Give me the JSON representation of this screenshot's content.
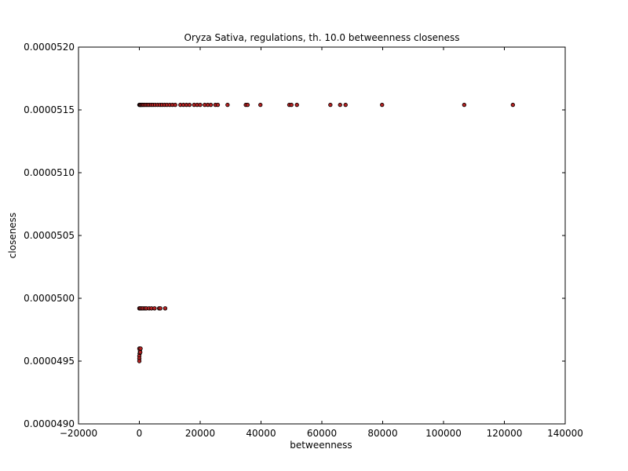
{
  "chart_data": {
    "type": "scatter",
    "title": "Oryza Sativa, regulations, th. 10.0 betweenness closeness",
    "xlabel": "betweenness",
    "ylabel": "closeness",
    "xlim": [
      -20000,
      140000
    ],
    "ylim": [
      4.9e-05,
      5.2e-05
    ],
    "grid": false,
    "x_ticks": [
      -20000,
      0,
      20000,
      40000,
      60000,
      80000,
      100000,
      120000,
      140000
    ],
    "x_tick_labels": [
      "−20000",
      "0",
      "20000",
      "40000",
      "60000",
      "80000",
      "100000",
      "120000",
      "140000"
    ],
    "y_ticks": [
      4.9e-05,
      4.95e-05,
      5e-05,
      5.05e-05,
      5.1e-05,
      5.15e-05,
      5.2e-05
    ],
    "y_tick_labels": [
      "0.0000490",
      "0.0000495",
      "0.0000500",
      "0.0000505",
      "0.0000510",
      "0.0000515",
      "0.0000520"
    ],
    "marker_face_color": "#b22222",
    "marker_edge_color": "#000000",
    "series": [
      {
        "points": [
          {
            "x": 0,
            "y": 5.154e-05
          },
          {
            "x": 200,
            "y": 5.154e-05
          },
          {
            "x": 400,
            "y": 5.154e-05
          },
          {
            "x": 700,
            "y": 5.154e-05
          },
          {
            "x": 1000,
            "y": 5.154e-05
          },
          {
            "x": 1400,
            "y": 5.154e-05
          },
          {
            "x": 1800,
            "y": 5.154e-05
          },
          {
            "x": 2300,
            "y": 5.154e-05
          },
          {
            "x": 2800,
            "y": 5.154e-05
          },
          {
            "x": 3300,
            "y": 5.154e-05
          },
          {
            "x": 3900,
            "y": 5.154e-05
          },
          {
            "x": 4500,
            "y": 5.154e-05
          },
          {
            "x": 5200,
            "y": 5.154e-05
          },
          {
            "x": 6000,
            "y": 5.154e-05
          },
          {
            "x": 6800,
            "y": 5.154e-05
          },
          {
            "x": 7500,
            "y": 5.154e-05
          },
          {
            "x": 8300,
            "y": 5.154e-05
          },
          {
            "x": 9100,
            "y": 5.154e-05
          },
          {
            "x": 10000,
            "y": 5.154e-05
          },
          {
            "x": 10900,
            "y": 5.154e-05
          },
          {
            "x": 11800,
            "y": 5.154e-05
          },
          {
            "x": 13500,
            "y": 5.154e-05
          },
          {
            "x": 14500,
            "y": 5.154e-05
          },
          {
            "x": 15500,
            "y": 5.154e-05
          },
          {
            "x": 16500,
            "y": 5.154e-05
          },
          {
            "x": 18000,
            "y": 5.154e-05
          },
          {
            "x": 19000,
            "y": 5.154e-05
          },
          {
            "x": 20000,
            "y": 5.154e-05
          },
          {
            "x": 21500,
            "y": 5.154e-05
          },
          {
            "x": 22500,
            "y": 5.154e-05
          },
          {
            "x": 23500,
            "y": 5.154e-05
          },
          {
            "x": 25000,
            "y": 5.154e-05
          },
          {
            "x": 25800,
            "y": 5.154e-05
          },
          {
            "x": 29000,
            "y": 5.154e-05
          },
          {
            "x": 35000,
            "y": 5.154e-05
          },
          {
            "x": 35600,
            "y": 5.154e-05
          },
          {
            "x": 39800,
            "y": 5.154e-05
          },
          {
            "x": 49300,
            "y": 5.154e-05
          },
          {
            "x": 50000,
            "y": 5.154e-05
          },
          {
            "x": 51800,
            "y": 5.154e-05
          },
          {
            "x": 62800,
            "y": 5.154e-05
          },
          {
            "x": 66000,
            "y": 5.154e-05
          },
          {
            "x": 67800,
            "y": 5.154e-05
          },
          {
            "x": 79800,
            "y": 5.154e-05
          },
          {
            "x": 106800,
            "y": 5.154e-05
          },
          {
            "x": 122800,
            "y": 5.154e-05
          },
          {
            "x": 0,
            "y": 4.992e-05
          },
          {
            "x": 300,
            "y": 4.992e-05
          },
          {
            "x": 700,
            "y": 4.992e-05
          },
          {
            "x": 1200,
            "y": 4.992e-05
          },
          {
            "x": 1800,
            "y": 4.992e-05
          },
          {
            "x": 2300,
            "y": 4.992e-05
          },
          {
            "x": 3200,
            "y": 4.992e-05
          },
          {
            "x": 4000,
            "y": 4.992e-05
          },
          {
            "x": 5000,
            "y": 4.992e-05
          },
          {
            "x": 6500,
            "y": 4.992e-05
          },
          {
            "x": 6900,
            "y": 4.992e-05
          },
          {
            "x": 8500,
            "y": 4.992e-05
          },
          {
            "x": 0,
            "y": 4.96e-05
          },
          {
            "x": 200,
            "y": 4.958e-05
          },
          {
            "x": 400,
            "y": 4.96e-05
          },
          {
            "x": 100,
            "y": 4.956e-05
          },
          {
            "x": 300,
            "y": 4.957e-05
          },
          {
            "x": 0,
            "y": 4.954e-05
          },
          {
            "x": 0,
            "y": 4.952e-05
          },
          {
            "x": 0,
            "y": 4.95e-05
          }
        ]
      }
    ]
  }
}
